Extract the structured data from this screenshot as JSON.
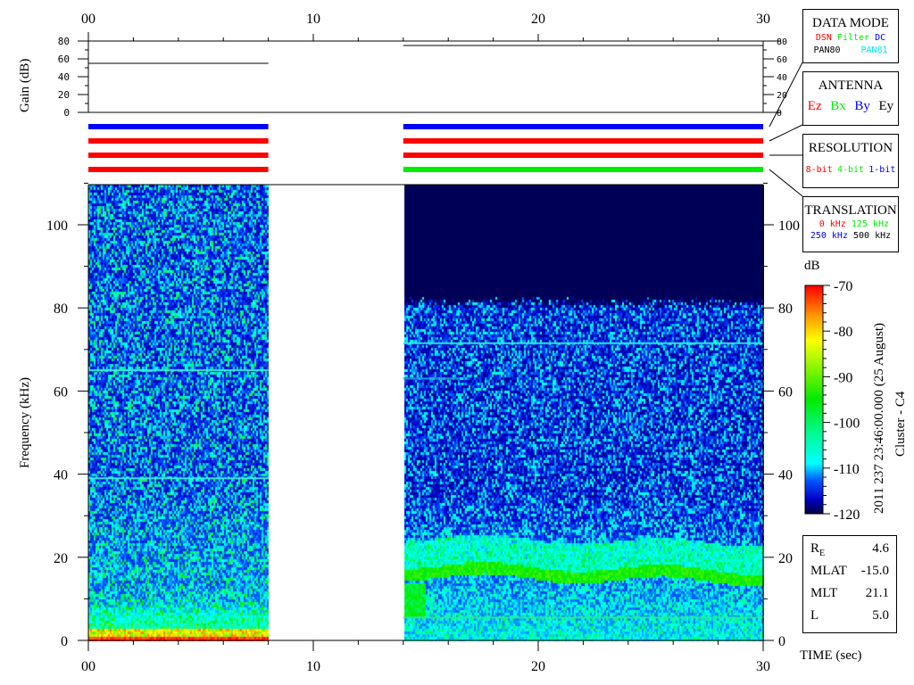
{
  "chart_data": {
    "type": "heatmap",
    "xlabel": "TIME (sec)",
    "ylabel": "Frequency (kHz)",
    "xlim": [
      0,
      30
    ],
    "ylim": [
      0,
      110
    ],
    "x_tick_labels": [
      "00",
      "10",
      "20",
      "30"
    ],
    "y_tick_labels": [
      "0",
      "20",
      "40",
      "60",
      "80",
      "100"
    ],
    "data_segments_sec": [
      [
        0,
        8
      ],
      [
        14,
        30
      ]
    ],
    "colorbar": {
      "label": "dB",
      "range": [
        -120,
        -70
      ],
      "tick_labels": [
        "-70",
        "-80",
        "-90",
        "-100",
        "-110",
        "-120"
      ]
    },
    "emission_lines_khz": {
      "segment_1": [
        65,
        39
      ],
      "segment_2": [
        71.5,
        5.5
      ]
    },
    "gain": {
      "ylabel": "Gain (dB)",
      "ylim": [
        0,
        80
      ],
      "tick_labels": [
        "0",
        "20",
        "40",
        "60",
        "80"
      ],
      "segments": [
        {
          "t": [
            0,
            8
          ],
          "value": 55
        },
        {
          "t": [
            14,
            30
          ],
          "value": 75
        }
      ]
    },
    "mode_bars": {
      "segment_1": [
        "#0000ff",
        "#ff0000",
        "#ff0000",
        "#ff0000"
      ],
      "segment_2": [
        "#0000ff",
        "#ff0000",
        "#ff0000",
        "#00ee00"
      ]
    }
  },
  "title_vertical": "2011 237 23:46:00.000 (25 August)",
  "spacecraft": "Cluster - C4",
  "legends": {
    "data_mode": {
      "title": "DATA MODE",
      "items": [
        {
          "label": "DSN",
          "color": "#ff0000"
        },
        {
          "label": "Filter",
          "color": "#00ee00"
        },
        {
          "label": "DC",
          "color": "#0000ff"
        },
        {
          "label": "PAN80",
          "color": "#000000"
        },
        {
          "label": "PAN81",
          "color": "#00e5e5"
        }
      ]
    },
    "antenna": {
      "title": "ANTENNA",
      "items": [
        {
          "label": "Ez",
          "color": "#ff0000"
        },
        {
          "label": "Bx",
          "color": "#00ee00"
        },
        {
          "label": "By",
          "color": "#0000ff"
        },
        {
          "label": "Ey",
          "color": "#000000"
        }
      ]
    },
    "resolution": {
      "title": "RESOLUTION",
      "items": [
        {
          "label": "8-bit",
          "color": "#ff0000"
        },
        {
          "label": "4-bit",
          "color": "#00ee00"
        },
        {
          "label": "1-bit",
          "color": "#0000ff"
        }
      ]
    },
    "translation": {
      "title": "TRANSLATION",
      "items": [
        {
          "label": "0 kHz",
          "color": "#ff0000"
        },
        {
          "label": "125 kHz",
          "color": "#00ee00"
        },
        {
          "label": "250 kHz",
          "color": "#0000ff"
        },
        {
          "label": "500 kHz",
          "color": "#000000"
        }
      ]
    }
  },
  "orbit": [
    {
      "label": "R",
      "sub": "E",
      "value": "4.6"
    },
    {
      "label": "MLAT",
      "sub": "",
      "value": "-15.0"
    },
    {
      "label": "MLT",
      "sub": "",
      "value": "21.1"
    },
    {
      "label": "L",
      "sub": "",
      "value": "5.0"
    }
  ]
}
